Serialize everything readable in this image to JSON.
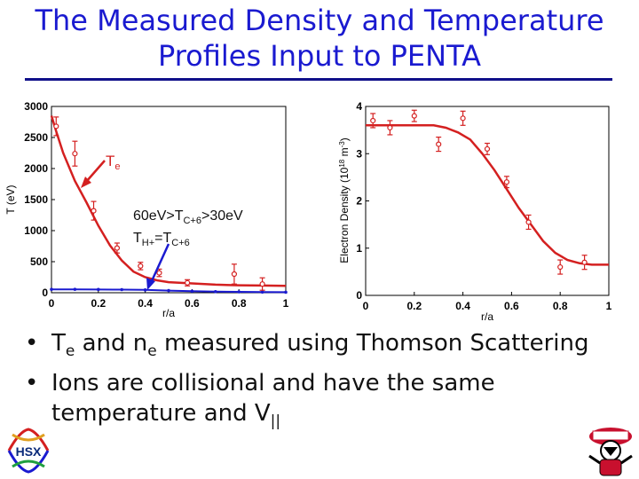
{
  "title": {
    "line1": "The Measured Density and Temperature",
    "line2": "Profiles Input to PENTA"
  },
  "chart_data": [
    {
      "type": "line",
      "xlabel": "r/a",
      "ylabel": "T (eV)",
      "xlim": [
        0,
        1
      ],
      "ylim": [
        0,
        3000
      ],
      "xticks": [
        "0",
        "0.2",
        "0.4",
        "0.6",
        "0.8",
        "1"
      ],
      "yticks": [
        "0",
        "500",
        "1000",
        "1500",
        "2000",
        "2500",
        "3000"
      ],
      "series": [
        {
          "color": "#d42020",
          "x": [
            0.0,
            0.02,
            0.05,
            0.1,
            0.15,
            0.2,
            0.25,
            0.3,
            0.35,
            0.4,
            0.45,
            0.5,
            0.6,
            0.7,
            0.8,
            0.9,
            1.0
          ],
          "y": [
            2850,
            2600,
            2250,
            1800,
            1450,
            1080,
            760,
            520,
            340,
            250,
            200,
            170,
            150,
            130,
            120,
            115,
            110
          ]
        },
        {
          "color": "#1a1ad0",
          "x": [
            0.0,
            0.1,
            0.2,
            0.3,
            0.4,
            0.5,
            0.6,
            0.7,
            0.8,
            0.9,
            1.0
          ],
          "y": [
            55,
            55,
            52,
            50,
            45,
            35,
            25,
            18,
            14,
            10,
            8
          ]
        }
      ],
      "points": [
        {
          "x": 0.02,
          "y": 2680,
          "err": 150
        },
        {
          "x": 0.1,
          "y": 2240,
          "err": 200
        },
        {
          "x": 0.18,
          "y": 1320,
          "err": 150
        },
        {
          "x": 0.28,
          "y": 720,
          "err": 80
        },
        {
          "x": 0.38,
          "y": 430,
          "err": 60
        },
        {
          "x": 0.46,
          "y": 320,
          "err": 60
        },
        {
          "x": 0.58,
          "y": 160,
          "err": 50
        },
        {
          "x": 0.78,
          "y": 300,
          "err": 160
        },
        {
          "x": 0.9,
          "y": 140,
          "err": 100
        }
      ],
      "annotations": {
        "te_label": "T",
        "te_sub": "e",
        "range_main": "60eV>T",
        "range_sub": "C+6",
        "range_tail": ">30eV",
        "equal_main1": "T",
        "equal_sub1": "H+",
        "equal_main2": "=T",
        "equal_sub2": "C+6"
      }
    },
    {
      "type": "line",
      "xlabel": "r/a",
      "ylabel": "Electron Density (10",
      "ylabel_exp": "18",
      "ylabel_unit": " m",
      "ylabel_unit_exp": "-3",
      "ylabel_close": ")",
      "xlim": [
        0,
        1
      ],
      "ylim": [
        0,
        4
      ],
      "xticks": [
        "0",
        "0.2",
        "0.4",
        "0.6",
        "0.8",
        "1"
      ],
      "yticks": [
        "0",
        "1",
        "2",
        "3",
        "4"
      ],
      "series": [
        {
          "color": "#d42020",
          "x": [
            0.0,
            0.1,
            0.2,
            0.28,
            0.33,
            0.38,
            0.43,
            0.48,
            0.53,
            0.58,
            0.63,
            0.68,
            0.73,
            0.78,
            0.83,
            0.88,
            0.93,
            1.0
          ],
          "y": [
            3.6,
            3.6,
            3.6,
            3.6,
            3.55,
            3.45,
            3.3,
            3.0,
            2.65,
            2.25,
            1.85,
            1.5,
            1.15,
            0.9,
            0.75,
            0.68,
            0.65,
            0.65
          ]
        }
      ],
      "points": [
        {
          "x": 0.03,
          "y": 3.7,
          "err": 0.15
        },
        {
          "x": 0.1,
          "y": 3.55,
          "err": 0.15
        },
        {
          "x": 0.2,
          "y": 3.8,
          "err": 0.12
        },
        {
          "x": 0.3,
          "y": 3.2,
          "err": 0.15
        },
        {
          "x": 0.4,
          "y": 3.75,
          "err": 0.15
        },
        {
          "x": 0.5,
          "y": 3.1,
          "err": 0.12
        },
        {
          "x": 0.58,
          "y": 2.4,
          "err": 0.12
        },
        {
          "x": 0.67,
          "y": 1.55,
          "err": 0.15
        },
        {
          "x": 0.8,
          "y": 0.6,
          "err": 0.15
        },
        {
          "x": 0.9,
          "y": 0.7,
          "err": 0.15
        }
      ]
    }
  ],
  "bullets": [
    {
      "t1": "T",
      "s1": "e",
      "t2": " and n",
      "s2": "e",
      "t3": " measured using Thomson Scattering"
    },
    {
      "line1": "Ions are collisional and have the same",
      "line2_main": "temperature and V",
      "line2_sub": "||"
    }
  ],
  "logos": {
    "left": "HSX"
  },
  "colors": {
    "title": "#1a1ad0",
    "fit": "#d42020",
    "ion": "#1a1ad0",
    "arrow": "#d42020",
    "arrow_blue": "#1a1ad0"
  }
}
